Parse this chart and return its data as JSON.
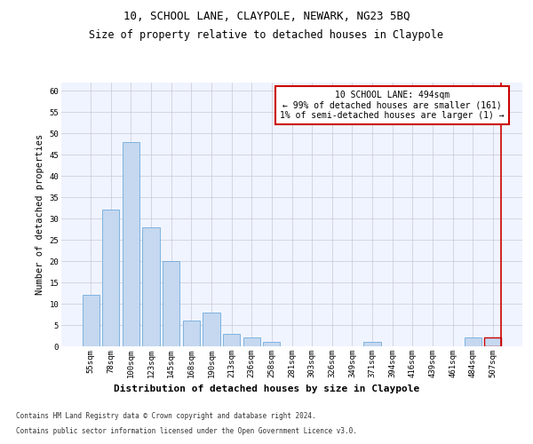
{
  "title": "10, SCHOOL LANE, CLAYPOLE, NEWARK, NG23 5BQ",
  "subtitle": "Size of property relative to detached houses in Claypole",
  "xlabel": "Distribution of detached houses by size in Claypole",
  "ylabel": "Number of detached properties",
  "categories": [
    "55sqm",
    "78sqm",
    "100sqm",
    "123sqm",
    "145sqm",
    "168sqm",
    "190sqm",
    "213sqm",
    "236sqm",
    "258sqm",
    "281sqm",
    "303sqm",
    "326sqm",
    "349sqm",
    "371sqm",
    "394sqm",
    "416sqm",
    "439sqm",
    "461sqm",
    "484sqm",
    "507sqm"
  ],
  "values": [
    12,
    32,
    48,
    28,
    20,
    6,
    8,
    3,
    2,
    1,
    0,
    0,
    0,
    0,
    1,
    0,
    0,
    0,
    0,
    2,
    2
  ],
  "bar_color": "#c5d8f0",
  "bar_edge_color": "#5a9fd4",
  "highlight_index": 20,
  "highlight_edge_color": "#cc0000",
  "ylim": [
    0,
    62
  ],
  "yticks": [
    0,
    5,
    10,
    15,
    20,
    25,
    30,
    35,
    40,
    45,
    50,
    55,
    60
  ],
  "annotation_text": "10 SCHOOL LANE: 494sqm\n← 99% of detached houses are smaller (161)\n1% of semi-detached houses are larger (1) →",
  "annotation_box_color": "#ffffff",
  "annotation_box_edge": "#cc0000",
  "footer_line1": "Contains HM Land Registry data © Crown copyright and database right 2024.",
  "footer_line2": "Contains public sector information licensed under the Open Government Licence v3.0.",
  "background_color": "#f0f4ff",
  "grid_color": "#c8c8d8",
  "title_fontsize": 9,
  "subtitle_fontsize": 8.5,
  "xlabel_fontsize": 8,
  "ylabel_fontsize": 7.5,
  "tick_fontsize": 6.5,
  "annot_fontsize": 7,
  "footer_fontsize": 5.5
}
